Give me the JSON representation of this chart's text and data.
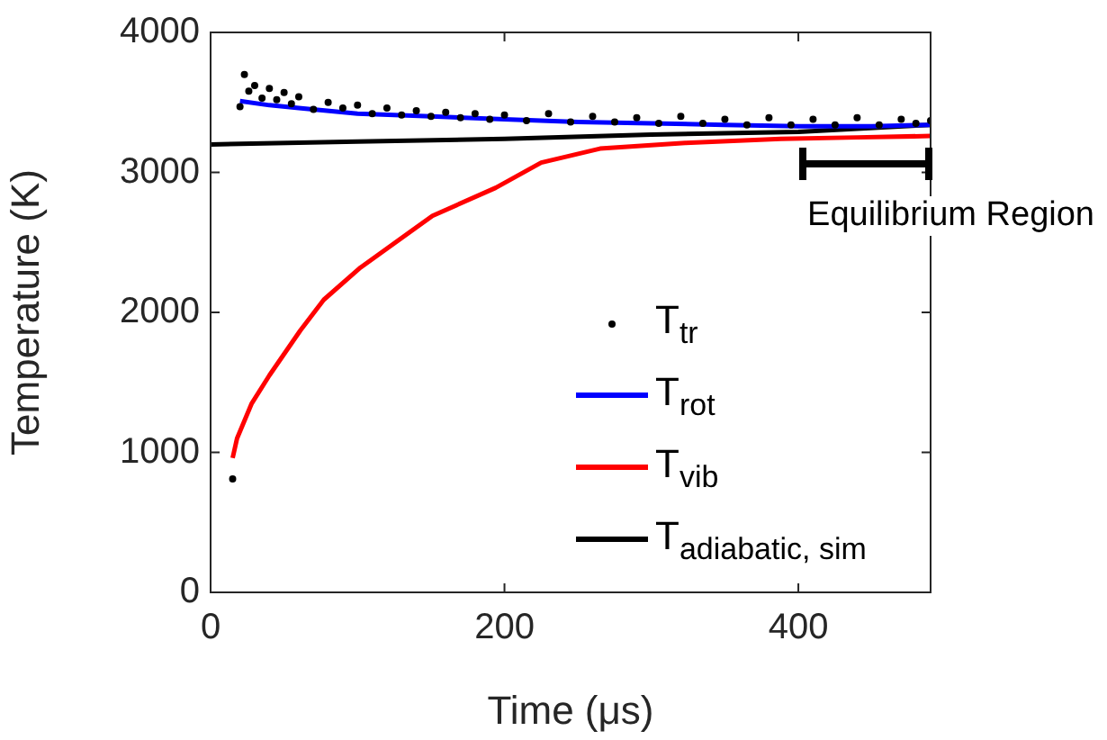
{
  "chart_data": {
    "type": "line",
    "xlabel": "Time (μs)",
    "ylabel": "Temperature (K)",
    "xlim": [
      0,
      490
    ],
    "xticks": [
      0,
      200,
      400
    ],
    "ylim": [
      0,
      4000
    ],
    "yticks": [
      0,
      1000,
      2000,
      3000,
      4000
    ],
    "grid": false,
    "legend": "bottom right",
    "annotations": [
      "Equilibrium Region"
    ],
    "series": [
      {
        "name": "T$_{tr}$",
        "type": "scatter",
        "marker": "circle",
        "color": "#000000",
        "x": [
          15,
          20,
          23,
          26,
          30,
          35,
          40,
          45,
          50,
          55,
          60,
          70,
          80,
          90,
          100,
          110,
          120,
          130,
          140,
          150,
          160,
          170,
          180,
          190,
          200,
          215,
          230,
          245,
          260,
          275,
          290,
          305,
          320,
          335,
          350,
          365,
          380,
          395,
          410,
          425,
          440,
          455,
          470,
          480,
          490
        ],
        "values": [
          810,
          3470,
          3700,
          3580,
          3620,
          3530,
          3600,
          3520,
          3570,
          3490,
          3540,
          3450,
          3500,
          3460,
          3480,
          3420,
          3460,
          3410,
          3440,
          3400,
          3430,
          3390,
          3420,
          3380,
          3410,
          3370,
          3420,
          3360,
          3400,
          3360,
          3390,
          3350,
          3400,
          3350,
          3380,
          3340,
          3390,
          3340,
          3380,
          3340,
          3390,
          3340,
          3380,
          3350,
          3370
        ]
      },
      {
        "name": "T$_{rot}$",
        "color": "#0000ff",
        "x": [
          20,
          40,
          60,
          100,
          150,
          200,
          250,
          300,
          350,
          400,
          450,
          490
        ],
        "values": [
          3510,
          3480,
          3460,
          3420,
          3400,
          3380,
          3360,
          3350,
          3340,
          3330,
          3330,
          3340
        ]
      },
      {
        "name": "T$_{vib}$",
        "color": "#ff0000",
        "x": [
          15,
          18,
          28,
          40,
          61,
          77,
          102,
          151,
          194,
          225,
          265,
          323,
          388,
          440,
          490
        ],
        "values": [
          960,
          1100,
          1350,
          1550,
          1870,
          2090,
          2320,
          2690,
          2890,
          3070,
          3170,
          3210,
          3240,
          3250,
          3260
        ]
      },
      {
        "name": "T$_{adiabatic, sim}$",
        "color": "#000000",
        "x": [
          0,
          100,
          200,
          300,
          400,
          490
        ],
        "values": [
          3200,
          3220,
          3240,
          3270,
          3290,
          3340
        ]
      }
    ]
  }
}
